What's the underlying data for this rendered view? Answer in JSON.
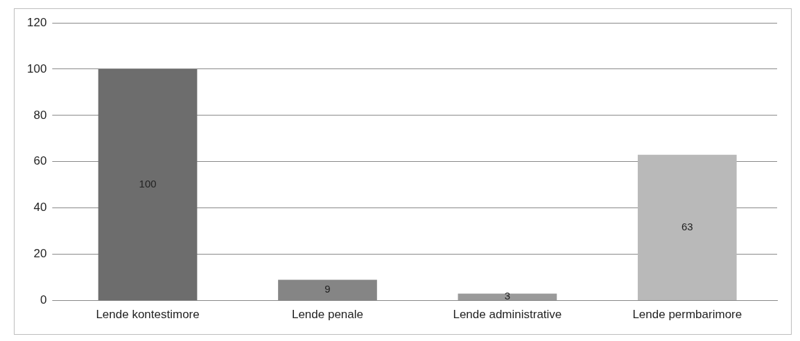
{
  "chart_data": {
    "type": "bar",
    "categories": [
      "Lende kontestimore",
      "Lende penale",
      "Lende administrative",
      "Lende permbarimore"
    ],
    "values": [
      100,
      9,
      3,
      63
    ],
    "colors": [
      "#6d6d6d",
      "#858585",
      "#9a9a9a",
      "#b9b9b9"
    ],
    "ylim": [
      0,
      120
    ],
    "yticks": [
      0,
      20,
      40,
      60,
      80,
      100,
      120
    ],
    "grid": "y",
    "legend": false,
    "data_labels": true
  }
}
